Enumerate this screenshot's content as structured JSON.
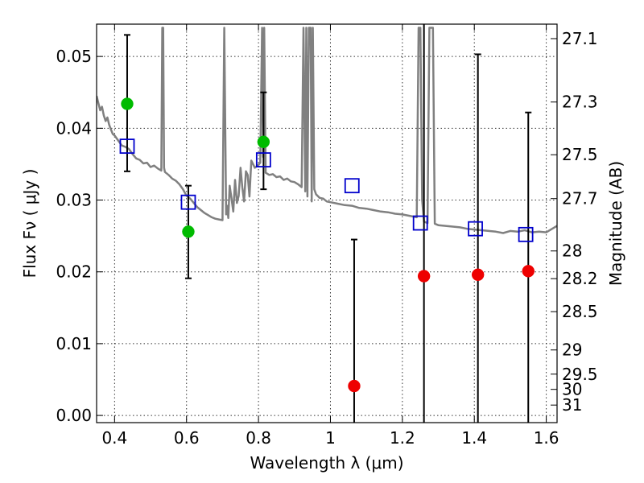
{
  "chart_data": {
    "type": "scatter",
    "title": "",
    "xlabel": "Wavelength  λ (μm)",
    "ylabel": "Flux  Fν  ( μJy )",
    "y2label": "Magnitude (AB)",
    "xlim": [
      0.35,
      1.63
    ],
    "ylim": [
      -0.001,
      0.0545
    ],
    "grid": true,
    "x_ticks": [
      {
        "value": 0.4,
        "label": "0.4"
      },
      {
        "value": 0.6,
        "label": "0.6"
      },
      {
        "value": 0.8,
        "label": "0.8"
      },
      {
        "value": 1.0,
        "label": "1"
      },
      {
        "value": 1.2,
        "label": "1.2"
      },
      {
        "value": 1.4,
        "label": "1.4"
      },
      {
        "value": 1.6,
        "label": "1.6"
      }
    ],
    "y_ticks": [
      {
        "value": 0.0,
        "label": "0.00"
      },
      {
        "value": 0.01,
        "label": "0.01"
      },
      {
        "value": 0.02,
        "label": "0.02"
      },
      {
        "value": 0.03,
        "label": "0.03"
      },
      {
        "value": 0.04,
        "label": "0.04"
      },
      {
        "value": 0.05,
        "label": "0.05"
      }
    ],
    "y2_ticks": [
      {
        "value": 27.1,
        "label": "27.1"
      },
      {
        "value": 27.3,
        "label": "27.3"
      },
      {
        "value": 27.5,
        "label": "27.5"
      },
      {
        "value": 27.7,
        "label": "27.7"
      },
      {
        "value": 28,
        "label": "28"
      },
      {
        "value": 28.2,
        "label": "28.2"
      },
      {
        "value": 28.5,
        "label": "28.5"
      },
      {
        "value": 29,
        "label": "29"
      },
      {
        "value": 29.5,
        "label": "29.5"
      },
      {
        "value": 30,
        "label": "30"
      },
      {
        "value": 31,
        "label": "31"
      }
    ],
    "colors": {
      "model": "#808080",
      "model_points": "#0000cc",
      "detections": "#00bb00",
      "limits": "#ee0000",
      "errorbars": "#000000"
    },
    "model_spectrum": {
      "x": [
        0.35,
        0.355,
        0.36,
        0.365,
        0.37,
        0.375,
        0.38,
        0.385,
        0.39,
        0.395,
        0.4,
        0.41,
        0.42,
        0.43,
        0.44,
        0.45,
        0.46,
        0.47,
        0.48,
        0.49,
        0.5,
        0.51,
        0.52,
        0.53,
        0.5325,
        0.535,
        0.5375,
        0.54,
        0.55,
        0.56,
        0.57,
        0.58,
        0.59,
        0.6,
        0.61,
        0.62,
        0.63,
        0.64,
        0.65,
        0.66,
        0.67,
        0.68,
        0.69,
        0.7,
        0.705,
        0.71,
        0.713,
        0.716,
        0.72,
        0.725,
        0.73,
        0.735,
        0.74,
        0.745,
        0.75,
        0.755,
        0.76,
        0.765,
        0.77,
        0.775,
        0.78,
        0.79,
        0.8,
        0.805,
        0.81,
        0.813,
        0.816,
        0.82,
        0.83,
        0.84,
        0.85,
        0.86,
        0.87,
        0.88,
        0.89,
        0.9,
        0.91,
        0.92,
        0.925,
        0.93,
        0.933,
        0.936,
        0.94,
        0.945,
        0.948,
        0.951,
        0.955,
        0.96,
        0.97,
        0.98,
        0.99,
        1.0,
        1.02,
        1.04,
        1.06,
        1.08,
        1.1,
        1.12,
        1.14,
        1.16,
        1.18,
        1.2,
        1.22,
        1.24,
        1.245,
        1.25,
        1.255,
        1.26,
        1.27,
        1.275,
        1.28,
        1.285,
        1.29,
        1.295,
        1.3,
        1.32,
        1.34,
        1.36,
        1.38,
        1.4,
        1.42,
        1.44,
        1.46,
        1.48,
        1.5,
        1.52,
        1.54,
        1.56,
        1.58,
        1.6,
        1.63
      ],
      "y": [
        0.0445,
        0.0435,
        0.0425,
        0.043,
        0.0418,
        0.041,
        0.0415,
        0.0405,
        0.0398,
        0.0392,
        0.039,
        0.0383,
        0.0376,
        0.0374,
        0.0371,
        0.0364,
        0.0358,
        0.0356,
        0.0351,
        0.0352,
        0.0346,
        0.0348,
        0.0344,
        0.0341,
        0.054,
        0.054,
        0.0345,
        0.0339,
        0.0335,
        0.033,
        0.0327,
        0.0322,
        0.0315,
        0.0306,
        0.0302,
        0.0296,
        0.029,
        0.0286,
        0.0282,
        0.0279,
        0.0276,
        0.0274,
        0.0273,
        0.0272,
        0.054,
        0.028,
        0.0292,
        0.0275,
        0.032,
        0.0302,
        0.0284,
        0.0328,
        0.0296,
        0.0306,
        0.0345,
        0.0318,
        0.0298,
        0.034,
        0.0335,
        0.0305,
        0.0355,
        0.0345,
        0.0349,
        0.0352,
        0.054,
        0.036,
        0.054,
        0.0338,
        0.0335,
        0.0336,
        0.0332,
        0.0333,
        0.0328,
        0.033,
        0.0326,
        0.0325,
        0.0322,
        0.0318,
        0.054,
        0.0312,
        0.054,
        0.0305,
        0.054,
        0.054,
        0.0298,
        0.054,
        0.0315,
        0.0308,
        0.0303,
        0.0302,
        0.0298,
        0.0297,
        0.0295,
        0.0293,
        0.0292,
        0.0289,
        0.0288,
        0.0286,
        0.0284,
        0.0283,
        0.0281,
        0.028,
        0.0278,
        0.0276,
        0.054,
        0.054,
        0.03,
        0.027,
        0.0268,
        0.054,
        0.054,
        0.054,
        0.0267,
        0.0266,
        0.0265,
        0.0264,
        0.0263,
        0.0262,
        0.026,
        0.0259,
        0.0258,
        0.0257,
        0.0256,
        0.0254,
        0.0257,
        0.0256,
        0.0258,
        0.0255,
        0.0256,
        0.0255,
        0.0264
      ]
    },
    "series": [
      {
        "marker": "square-open",
        "x": [
          0.435,
          0.605,
          0.814,
          1.06,
          1.25,
          1.403,
          1.543
        ],
        "y": [
          0.0375,
          0.0297,
          0.0356,
          0.032,
          0.0268,
          0.026,
          0.0252
        ]
      },
      {
        "marker": "circle-filled",
        "x": [
          0.435,
          0.605,
          0.814
        ],
        "y": [
          0.0434,
          0.0256,
          0.0381
        ],
        "yerr_low": [
          0.034,
          0.0191,
          0.0315
        ],
        "yerr_high": [
          0.053,
          0.032,
          0.045
        ]
      },
      {
        "marker": "circle-filled",
        "x": [
          1.066,
          1.26,
          1.41,
          1.55
        ],
        "y": [
          0.0041,
          0.0194,
          0.0196,
          0.0201
        ],
        "yerr_low": [
          -0.001,
          -0.001,
          -0.001,
          -0.001
        ],
        "yerr_high": [
          0.0245,
          0.0545,
          0.0503,
          0.0422
        ]
      }
    ]
  }
}
